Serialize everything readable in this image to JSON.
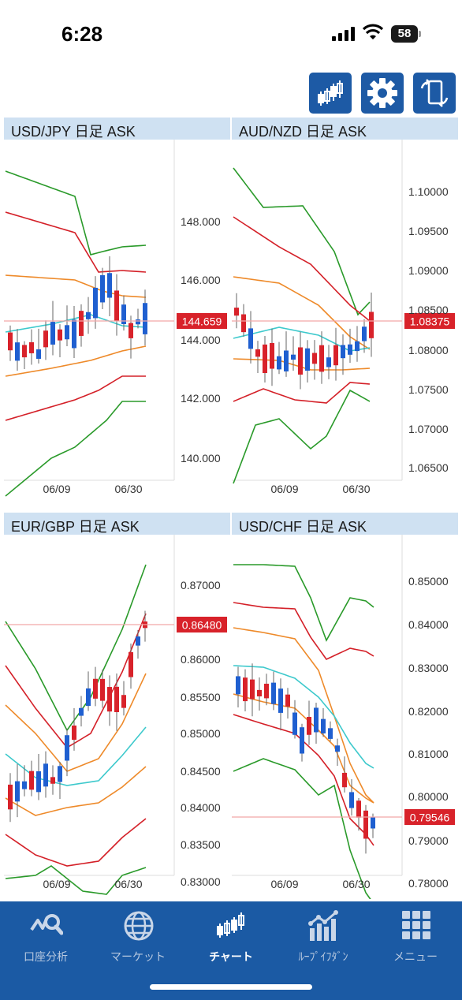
{
  "status_bar": {
    "time": "6:28",
    "battery": "58"
  },
  "toolbar": {
    "buttons": [
      "chart-type-icon",
      "gear-icon",
      "swap-device-icon"
    ]
  },
  "colors": {
    "up": "#1f5fd0",
    "down": "#d8222a",
    "bb3": "#2a9a2a",
    "bb2": "#d42028",
    "bb1": "#ee8a2a",
    "ma": "#3dc9cc",
    "price_line": "#f2a8a8",
    "price_tag": "#d8222a"
  },
  "panels": [
    {
      "title": "USD/JPY 日足 ASK",
      "price": "144.659",
      "y_labels": [
        "148.000",
        "146.000",
        "144.000",
        "142.000",
        "140.000"
      ],
      "x_labels": [
        "06/09",
        "06/30"
      ]
    },
    {
      "title": "AUD/NZD 日足 ASK",
      "price": "1.08375",
      "y_labels": [
        "1.10000",
        "1.09500",
        "1.09000",
        "1.08500",
        "1.08000",
        "1.07500",
        "1.07000",
        "1.06500"
      ],
      "x_labels": [
        "06/09",
        "06/30"
      ]
    },
    {
      "title": "EUR/GBP 日足 ASK",
      "price": "0.86480",
      "y_labels": [
        "0.87000",
        "0.86000",
        "0.85500",
        "0.85000",
        "0.84500",
        "0.84000",
        "0.83500",
        "0.83000"
      ],
      "x_labels": [
        "06/09",
        "06/30"
      ]
    },
    {
      "title": "USD/CHF 日足 ASK",
      "price": "0.79546",
      "y_labels": [
        "0.85000",
        "0.84000",
        "0.83000",
        "0.82000",
        "0.81000",
        "0.80000",
        "0.79000",
        "0.78000"
      ],
      "x_labels": [
        "06/09",
        "06/30"
      ]
    }
  ],
  "nav": {
    "items": [
      {
        "label": "口座分析",
        "icon": "account-analysis-icon"
      },
      {
        "label": "マーケット",
        "icon": "globe-icon"
      },
      {
        "label": "チャート",
        "icon": "candlestick-icon",
        "active": true
      },
      {
        "label": "ﾙｰﾌﾟｲﾌﾀﾞﾝ",
        "icon": "loop-ifdone-icon"
      },
      {
        "label": "メニュー",
        "icon": "grid-menu-icon"
      }
    ]
  }
}
